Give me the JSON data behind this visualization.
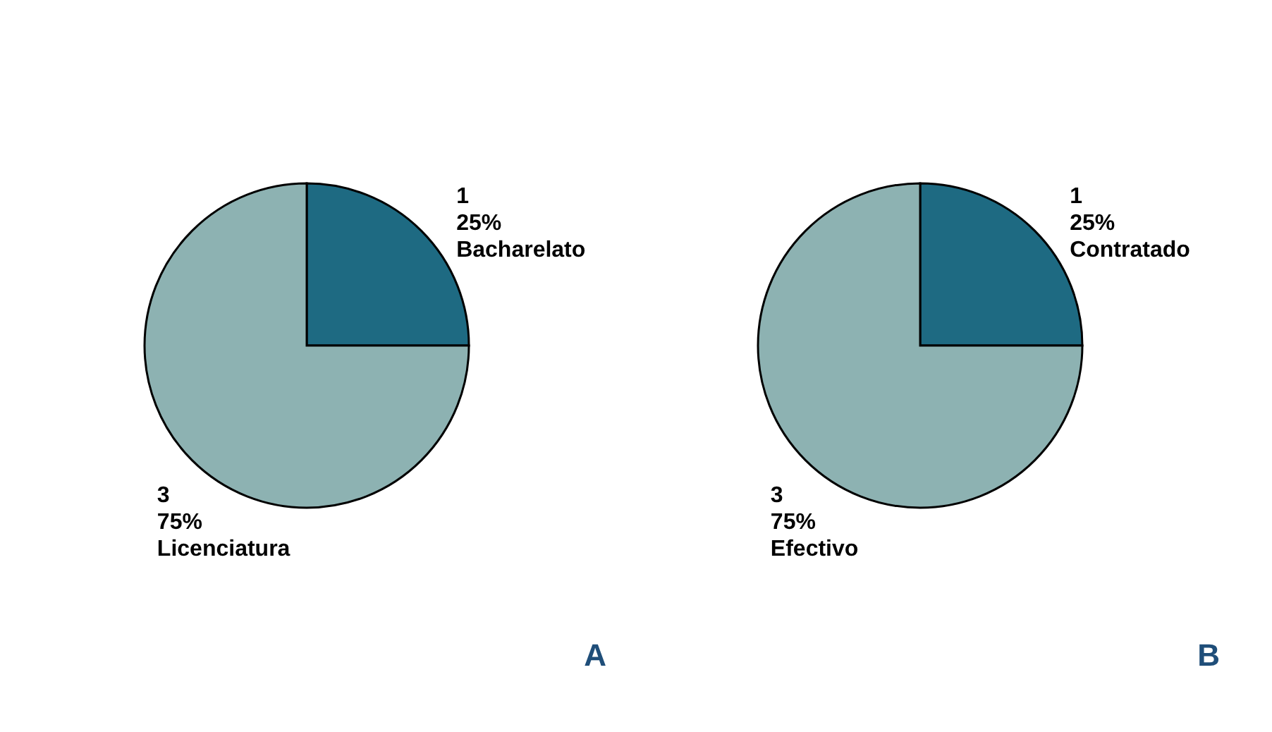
{
  "chart_data": [
    {
      "type": "pie",
      "categories": [
        "Bacharelato",
        "Licenciatura"
      ],
      "values": [
        1,
        3
      ],
      "value_labels": [
        "1\n25%",
        "3\n75%"
      ],
      "colors": [
        "#1e6a82",
        "#8db2b2"
      ],
      "legend": false,
      "annotations": [
        "A"
      ]
    },
    {
      "type": "pie",
      "categories": [
        "Contratado",
        "Efectivo"
      ],
      "values": [
        1,
        3
      ],
      "value_labels": [
        "1\n25%",
        "3\n75%"
      ],
      "colors": [
        "#1e6a82",
        "#8db2b2"
      ],
      "legend": false,
      "annotations": [
        "B"
      ]
    }
  ]
}
